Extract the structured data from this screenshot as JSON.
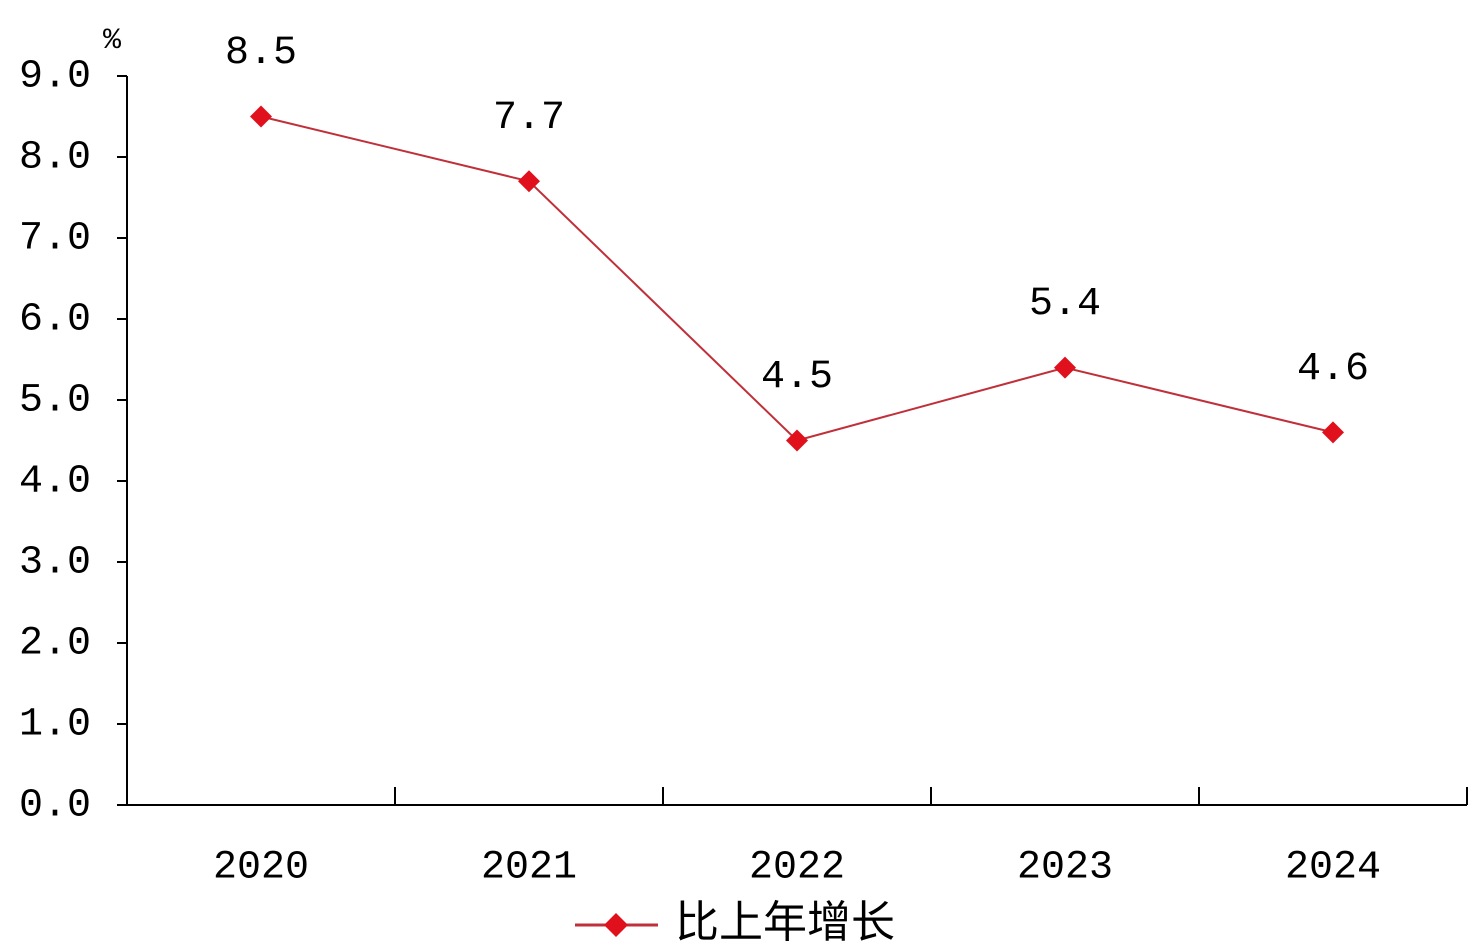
{
  "chart_data": {
    "type": "line",
    "y_unit": "%",
    "categories": [
      "2020",
      "2021",
      "2022",
      "2023",
      "2024"
    ],
    "series": [
      {
        "name": "比上年增长",
        "color": "#e0101c",
        "values": [
          8.5,
          7.7,
          4.5,
          5.4,
          4.6
        ]
      }
    ],
    "ylim": [
      0,
      9
    ],
    "yticks": [
      {
        "value": 0,
        "label": "0.0"
      },
      {
        "value": 1,
        "label": "1.0"
      },
      {
        "value": 2,
        "label": "2.0"
      },
      {
        "value": 3,
        "label": "3.0"
      },
      {
        "value": 4,
        "label": "4.0"
      },
      {
        "value": 5,
        "label": "5.0"
      },
      {
        "value": 6,
        "label": "6.0"
      },
      {
        "value": 7,
        "label": "7.0"
      },
      {
        "value": 8,
        "label": "8.0"
      },
      {
        "value": 9,
        "label": "9.0"
      }
    ],
    "grid": false,
    "legend": "bottom"
  }
}
